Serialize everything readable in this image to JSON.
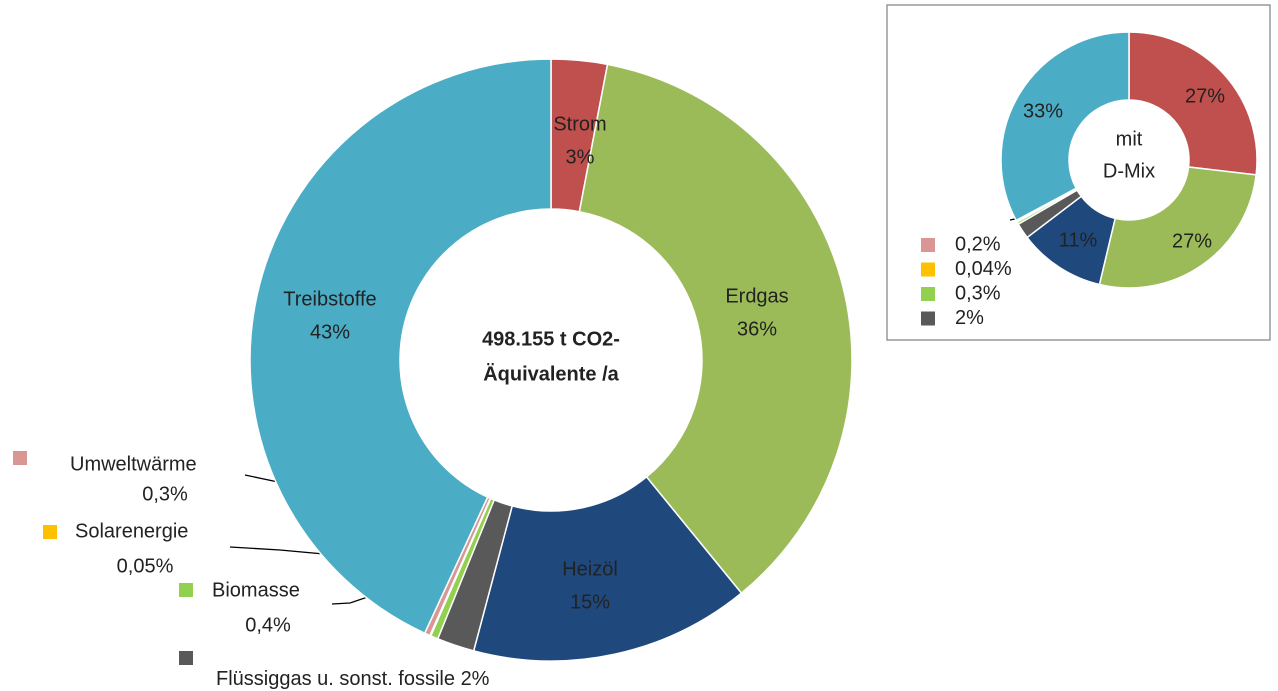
{
  "chart_data": [
    {
      "type": "donut",
      "center_label": [
        "498.155 t CO2-",
        "Äquivalente /a"
      ],
      "categories": [
        "Strom",
        "Erdgas",
        "Heizöl",
        "Flüssiggas u. sonst. fossile",
        "Biomasse",
        "Solarenergie",
        "Umweltwärme",
        "Treibstoffe"
      ],
      "values": [
        3,
        36,
        15,
        2,
        0.4,
        0.05,
        0.3,
        43
      ],
      "value_labels": [
        "3%",
        "36%",
        "15%",
        "2%",
        "0,4%",
        "0,05%",
        "0,3%",
        "43%"
      ],
      "colors": [
        "#c0504d",
        "#9bbb59",
        "#1f497d",
        "#595959",
        "#92d050",
        "#ffc000",
        "#d99694",
        "#4bacc6"
      ]
    },
    {
      "type": "donut",
      "center_label": [
        "mit",
        "D-Mix"
      ],
      "values": [
        27,
        27,
        11,
        2,
        0.3,
        0.04,
        0.2,
        33
      ],
      "value_labels": [
        "27%",
        "27%",
        "11%",
        "2%",
        "0,3%",
        "0,04%",
        "0,2%",
        "33%"
      ],
      "colors": [
        "#c0504d",
        "#9bbb59",
        "#1f497d",
        "#595959",
        "#92d050",
        "#ffc000",
        "#d99694",
        "#4bacc6"
      ]
    }
  ]
}
